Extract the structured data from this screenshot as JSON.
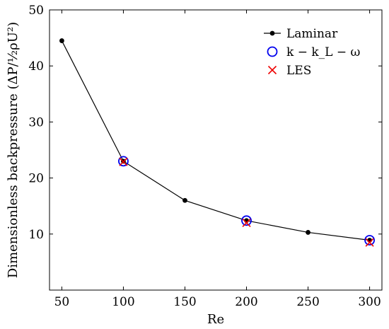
{
  "chart_data": {
    "type": "line",
    "xlabel": "Re",
    "ylabel": "Dimensionless backpressure  (ΔP/½ρU²)",
    "xlim": [
      40,
      310
    ],
    "ylim": [
      0,
      50
    ],
    "xticks": [
      50,
      100,
      150,
      200,
      250,
      300
    ],
    "yticks": [
      10,
      20,
      30,
      40,
      50
    ],
    "grid": false,
    "legend_position": "top-right",
    "series": [
      {
        "name": "Laminar",
        "marker": "filled-circle",
        "line": true,
        "color": "#000000",
        "points": [
          {
            "x": 50,
            "y": 44.5
          },
          {
            "x": 100,
            "y": 23.0
          },
          {
            "x": 150,
            "y": 16.0
          },
          {
            "x": 200,
            "y": 12.4
          },
          {
            "x": 250,
            "y": 10.3
          },
          {
            "x": 300,
            "y": 8.9
          }
        ]
      },
      {
        "name": "k − k_L − ω",
        "marker": "open-circle",
        "line": false,
        "color": "#0000ee",
        "points": [
          {
            "x": 100,
            "y": 23.0
          },
          {
            "x": 200,
            "y": 12.4
          },
          {
            "x": 300,
            "y": 8.9
          }
        ]
      },
      {
        "name": "LES",
        "marker": "cross",
        "line": false,
        "color": "#ee0000",
        "points": [
          {
            "x": 100,
            "y": 22.9
          },
          {
            "x": 200,
            "y": 12.0
          },
          {
            "x": 300,
            "y": 8.5
          }
        ]
      }
    ]
  }
}
